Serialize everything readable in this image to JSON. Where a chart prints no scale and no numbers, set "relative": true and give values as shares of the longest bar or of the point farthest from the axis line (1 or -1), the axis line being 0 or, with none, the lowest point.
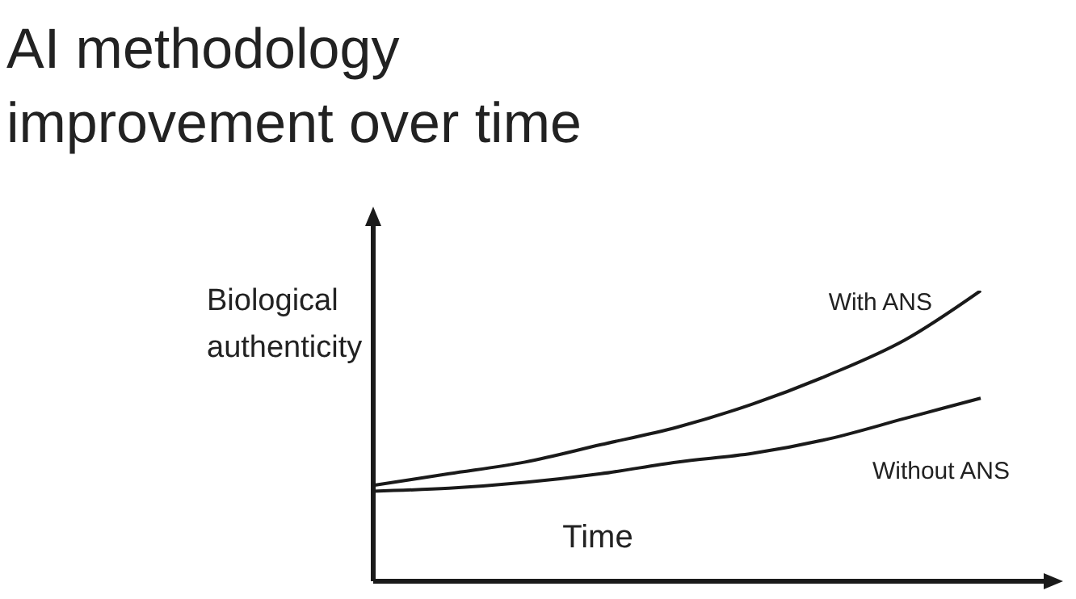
{
  "chart_data": {
    "type": "line",
    "title": "AI methodology improvement over time",
    "xlabel": "Time",
    "ylabel": "Biological authenticity",
    "relative": true,
    "categories": [
      null,
      null,
      null,
      null,
      null,
      null,
      null,
      null,
      null
    ],
    "series": [
      {
        "name": "With ANS",
        "color": "#1a1a1a",
        "values": [
          0.33,
          0.37,
          0.41,
          0.47,
          0.53,
          0.61,
          0.71,
          0.83,
          1
        ]
      },
      {
        "name": "Without ANS",
        "color": "#1a1a1a",
        "values": [
          0.31,
          0.32,
          0.34,
          0.37,
          0.41,
          0.44,
          0.49,
          0.56,
          0.63
        ]
      }
    ],
    "grid": false,
    "legend": false,
    "marker": "none",
    "line_style": "solid"
  }
}
